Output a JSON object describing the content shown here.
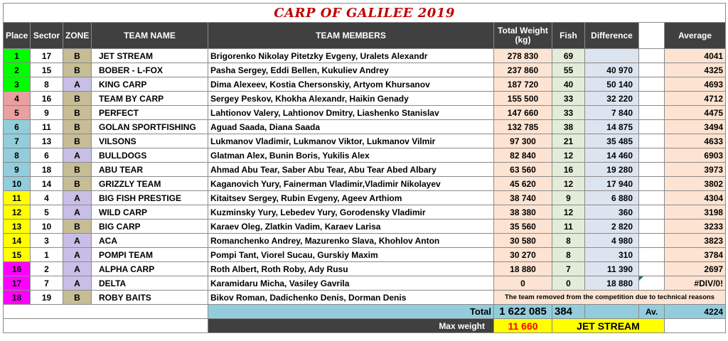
{
  "title": "CARP OF GALILEE 2019",
  "headers": {
    "place": "Place",
    "sector": "Sector",
    "zone": "ZONE",
    "team_name": "TEAM NAME",
    "team_members": "TEAM MEMBERS",
    "total_weight": "Total Weight (kg)",
    "fish": "Fish",
    "difference": "Difference",
    "average": "Average"
  },
  "rows": [
    {
      "place": "1",
      "place_color": "#00ff00",
      "sector": "17",
      "zone": "B",
      "team": "JET STREAM",
      "members": "Brigorenko Nikolay Pitetzky Evgeny, Uralets Alexandr",
      "weight": "278 830",
      "fish": "69",
      "diff": "",
      "average": "4041"
    },
    {
      "place": "2",
      "place_color": "#00ff00",
      "sector": "15",
      "zone": "B",
      "team": "BOBER - L-FOX",
      "members": "Pasha Sergey, Eddi Bellen, Kukuliev Andrey",
      "weight": "237 860",
      "fish": "55",
      "diff": "40 970",
      "average": "4325"
    },
    {
      "place": "3",
      "place_color": "#00ff00",
      "sector": "8",
      "zone": "A",
      "team": "KING CARP",
      "members": "Dima Alexeev, Kostia Chersonskiy, Artyom Khursanov",
      "weight": "187 720",
      "fish": "40",
      "diff": "50 140",
      "average": "4693"
    },
    {
      "place": "4",
      "place_color": "#e8a0a0",
      "sector": "16",
      "zone": "B",
      "team": "TEAM BY CARP",
      "members": "Sergey Peskov, Khokha Alexandr, Haikin Genady",
      "weight": "155 500",
      "fish": "33",
      "diff": "32 220",
      "average": "4712"
    },
    {
      "place": "5",
      "place_color": "#e8a0a0",
      "sector": "9",
      "zone": "B",
      "team": "PERFECT",
      "members": "Lahtionov Valery, Lahtionov Dmitry, Liashenko Stanislav",
      "weight": "147 660",
      "fish": "33",
      "diff": "7 840",
      "average": "4475"
    },
    {
      "place": "6",
      "place_color": "#92cddc",
      "sector": "11",
      "zone": "B",
      "team": "GOLAN SPORTFISHING",
      "members": "Aguad Saada, Diana Saada",
      "weight": "132 785",
      "fish": "38",
      "diff": "14 875",
      "average": "3494"
    },
    {
      "place": "7",
      "place_color": "#92cddc",
      "sector": "13",
      "zone": "B",
      "team": "VILSONS",
      "members": "Lukmanov Vladimir, Lukmanov Viktor, Lukmanov Vilmir",
      "weight": "97 300",
      "fish": "21",
      "diff": "35 485",
      "average": "4633"
    },
    {
      "place": "8",
      "place_color": "#92cddc",
      "sector": "6",
      "zone": "A",
      "team": "BULLDOGS",
      "members": "Glatman Alex, Bunin Boris, Yukilis Alex",
      "weight": "82 840",
      "fish": "12",
      "diff": "14 460",
      "average": "6903"
    },
    {
      "place": "9",
      "place_color": "#92cddc",
      "sector": "18",
      "zone": "B",
      "team": "ABU TEAR",
      "members": "Ahmad Abu Tear, Saber Abu Tear, Abu Tear Abed Albary",
      "weight": "63 560",
      "fish": "16",
      "diff": "19 280",
      "average": "3973"
    },
    {
      "place": "10",
      "place_color": "#92cddc",
      "sector": "14",
      "zone": "B",
      "team": "GRIZZLY TEAM",
      "members": "Kaganovich Yury, Fainerman Vladimir,Vladimir Nikolayev",
      "weight": "45 620",
      "fish": "12",
      "diff": "17 940",
      "average": "3802"
    },
    {
      "place": "11",
      "place_color": "#ffff00",
      "sector": "4",
      "zone": "A",
      "team": "BIG FISH PRESTIGE",
      "members": "Kitaitsev Sergey, Rubin Evgeny, Ageev Arthiom",
      "weight": "38 740",
      "fish": "9",
      "diff": "6 880",
      "average": "4304"
    },
    {
      "place": "12",
      "place_color": "#ffff00",
      "sector": "5",
      "zone": "A",
      "team": "WILD CARP",
      "members": "Kuzminsky Yury, Lebedev Yury, Gorodensky Vladimir",
      "weight": "38 380",
      "fish": "12",
      "diff": "360",
      "average": "3198"
    },
    {
      "place": "13",
      "place_color": "#ffff00",
      "sector": "10",
      "zone": "B",
      "team": "BIG CARP",
      "members": "Karaev Oleg, Zlatkin Vadim, Karaev Larisa",
      "weight": "35 560",
      "fish": "11",
      "diff": "2 820",
      "average": "3233"
    },
    {
      "place": "14",
      "place_color": "#ffff00",
      "sector": "3",
      "zone": "A",
      "team": "ACA",
      "members": "Romanchenko Andrey, Mazurenko Slava, Khohlov Anton",
      "weight": "30 580",
      "fish": "8",
      "diff": "4 980",
      "average": "3823"
    },
    {
      "place": "15",
      "place_color": "#ffff00",
      "sector": "1",
      "zone": "A",
      "team": "POMPI TEAM",
      "members": "Pompi Tant, Viorel Sucau, Gurskiy Maxim",
      "weight": "30 270",
      "fish": "8",
      "diff": "310",
      "average": "3784"
    },
    {
      "place": "16",
      "place_color": "#ff00ff",
      "sector": "2",
      "zone": "A",
      "team": "ALPHA CARP",
      "members": "Roth Albert, Roth Roby, Ady Rusu",
      "weight": "18 880",
      "fish": "7",
      "diff": "11 390",
      "average": "2697"
    },
    {
      "place": "17",
      "place_color": "#ff00ff",
      "sector": "7",
      "zone": "A",
      "team": "DELTA",
      "members": "Karamidaru Micha, Vasiley Gavrila",
      "weight": "0",
      "fish": "0",
      "diff": "18 880",
      "average": "#DIV/0!"
    }
  ],
  "removed_row": {
    "place": "18",
    "place_color": "#ff00ff",
    "sector": "19",
    "zone": "B",
    "team": "ROBY BAITS",
    "members": "Bikov Roman, Dadichenko Denis, Dorman Denis",
    "note": "The team removed from the competition due to technical reasons"
  },
  "totals": {
    "label": "Total",
    "weight": "1 622 085",
    "fish": "384",
    "avg_label": "Av.",
    "average": "4224"
  },
  "max_weight": {
    "label": "Max weight",
    "value": "11 660",
    "team": "JET STREAM"
  }
}
